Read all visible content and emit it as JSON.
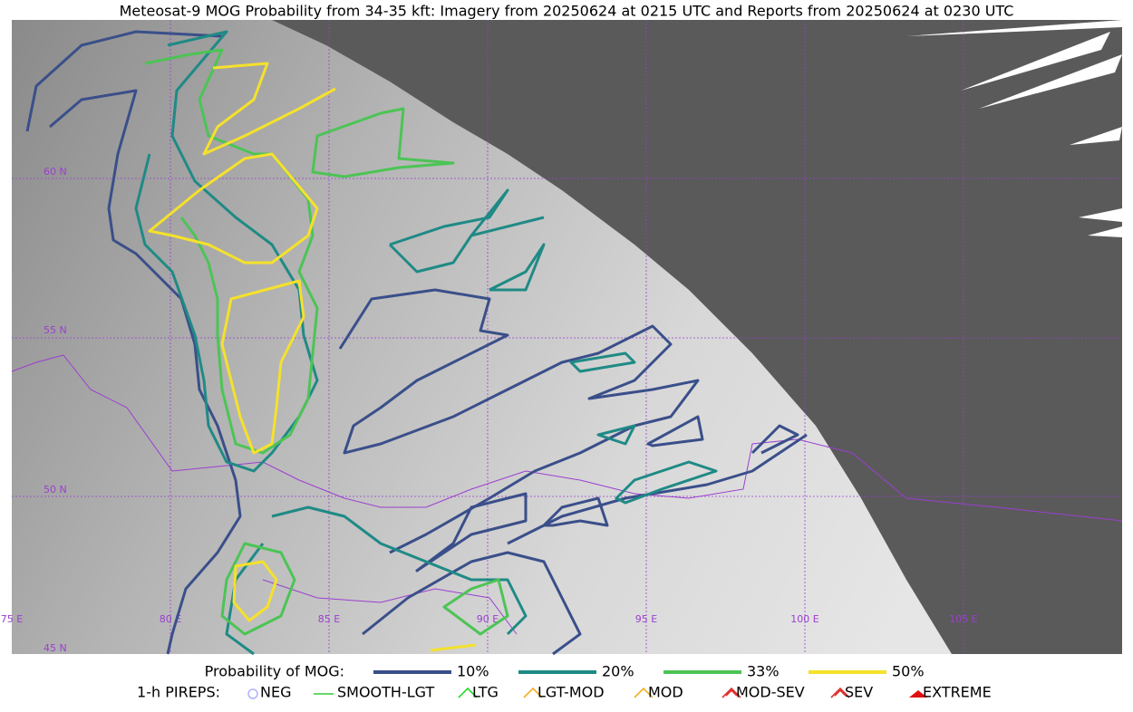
{
  "title": "Meteosat-9 MOG Probability from 34-35 kft: Imagery from 20250624 at 0215 UTC and Reports from 20250624 at 0230 UTC",
  "map": {
    "lat_labels": [
      "60 N",
      "55 N",
      "50 N",
      "45 N"
    ],
    "lon_labels": [
      "75 E",
      "80 E",
      "85 E",
      "90 E",
      "95 E",
      "100 E",
      "105 E"
    ]
  },
  "legend": {
    "probability": {
      "label": "Probability of MOG:",
      "items": [
        {
          "label": "10%",
          "color": "#3a4f8a"
        },
        {
          "label": "20%",
          "color": "#1f8a85"
        },
        {
          "label": "33%",
          "color": "#4cc455"
        },
        {
          "label": "50%",
          "color": "#f5e12b"
        }
      ]
    },
    "pireps": {
      "label": "1-h PIREPS:",
      "items": [
        {
          "label": "NEG",
          "color": "#b0b0ff"
        },
        {
          "label": "SMOOTH-LGT",
          "color": "#33cc33"
        },
        {
          "label": "LTG",
          "color": "#22dd22"
        },
        {
          "label": "LGT-MOD",
          "color": "#f0b020"
        },
        {
          "label": "MOD",
          "color": "#f0b020"
        },
        {
          "label": "MOD-SEV",
          "color": "#e03030"
        },
        {
          "label": "SEV",
          "color": "#e03030"
        },
        {
          "label": "EXTREME",
          "color": "#e01010"
        }
      ]
    }
  }
}
